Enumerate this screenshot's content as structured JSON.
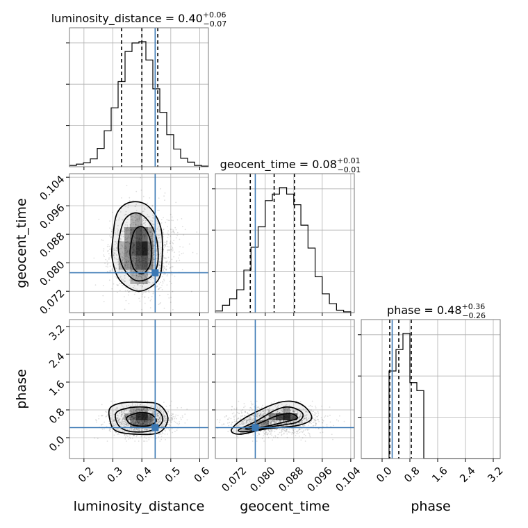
{
  "chart_data": {
    "type": "corner",
    "params": [
      "luminosity_distance",
      "geocent_time",
      "phase"
    ],
    "truths": [
      0.446,
      0.0772,
      0.29
    ],
    "grid": true,
    "ranges": [
      [
        0.15,
        0.63
      ],
      [
        0.066,
        0.105
      ],
      [
        -0.6,
        3.4
      ]
    ],
    "ticks": {
      "luminosity_distance": [
        "0.2",
        "0.3",
        "0.4",
        "0.5",
        "0.6"
      ],
      "geocent_time": [
        "0.072",
        "0.080",
        "0.088",
        "0.096",
        "0.104"
      ],
      "phase": [
        "0.0",
        "0.8",
        "1.6",
        "2.4",
        "3.2"
      ]
    },
    "titles": [
      {
        "text": "luminosity_distance = 0.40",
        "sup": "+0.06",
        "sub": "−0.07"
      },
      {
        "text": "geocent_time = 0.08",
        "sup": "+0.01",
        "sub": "−0.01"
      },
      {
        "text": "phase = 0.48",
        "sup": "+0.36",
        "sub": "−0.26"
      }
    ],
    "quantiles": [
      [
        0.33,
        0.4,
        0.455
      ],
      [
        0.0758,
        0.0825,
        0.0882
      ],
      [
        0.22,
        0.48,
        0.84
      ]
    ],
    "histograms": [
      {
        "param": "luminosity_distance",
        "bins": [
          0.15,
          0.174,
          0.198,
          0.222,
          0.246,
          0.27,
          0.294,
          0.318,
          0.342,
          0.366,
          0.39,
          0.414,
          0.438,
          0.462,
          0.486,
          0.51,
          0.534,
          0.558,
          0.582,
          0.606,
          0.63
        ],
        "counts": [
          2,
          4,
          6,
          12,
          28,
          55,
          90,
          130,
          176,
          189,
          191,
          163,
          119,
          83,
          49,
          27,
          13,
          7,
          2,
          1
        ]
      },
      {
        "param": "geocent_time",
        "bins": [
          0.066,
          0.068,
          0.07,
          0.072,
          0.074,
          0.076,
          0.078,
          0.08,
          0.082,
          0.084,
          0.086,
          0.088,
          0.09,
          0.092,
          0.094,
          0.096,
          0.098,
          0.1,
          0.102,
          0.104
        ],
        "counts": [
          2,
          9,
          17,
          28,
          52,
          80,
          105,
          137,
          145,
          153,
          145,
          132,
          107,
          79,
          44,
          23,
          11,
          3,
          1
        ]
      },
      {
        "param": "phase",
        "bins": [
          -0.6,
          -0.4,
          -0.2,
          0.0,
          0.2,
          0.4,
          0.6,
          0.8,
          1.0,
          1.2,
          1.4,
          1.6,
          1.8,
          2.0,
          2.2,
          2.4,
          2.6,
          2.8,
          3.0,
          3.2,
          3.4
        ],
        "counts": [
          0,
          0,
          0,
          0,
          98,
          122,
          140,
          85,
          76,
          0,
          0,
          0,
          0,
          0,
          0,
          0,
          0,
          0,
          0,
          0
        ]
      }
    ],
    "contours": [
      {
        "x": "luminosity_distance",
        "y": "geocent_time",
        "levels": [
          [
            [
              0.3,
              0.087
            ],
            [
              0.315,
              0.094
            ],
            [
              0.36,
              0.097
            ],
            [
              0.42,
              0.096
            ],
            [
              0.465,
              0.09
            ],
            [
              0.47,
              0.081
            ],
            [
              0.455,
              0.075
            ],
            [
              0.39,
              0.072
            ],
            [
              0.325,
              0.075
            ],
            [
              0.298,
              0.081
            ]
          ],
          [
            [
              0.32,
              0.086
            ],
            [
              0.34,
              0.092
            ],
            [
              0.38,
              0.094
            ],
            [
              0.42,
              0.092
            ],
            [
              0.45,
              0.087
            ],
            [
              0.455,
              0.08
            ],
            [
              0.43,
              0.076
            ],
            [
              0.38,
              0.075
            ],
            [
              0.34,
              0.078
            ],
            [
              0.322,
              0.082
            ]
          ],
          [
            [
              0.36,
              0.084
            ],
            [
              0.375,
              0.089
            ],
            [
              0.405,
              0.09
            ],
            [
              0.43,
              0.086
            ],
            [
              0.43,
              0.08
            ],
            [
              0.405,
              0.077
            ],
            [
              0.375,
              0.078
            ],
            [
              0.362,
              0.081
            ]
          ]
        ],
        "density": [
          [
            0.33,
            0.08,
            0.3
          ],
          [
            0.35,
            0.08,
            0.45
          ],
          [
            0.37,
            0.08,
            0.55
          ],
          [
            0.39,
            0.08,
            0.7
          ],
          [
            0.41,
            0.08,
            0.75
          ],
          [
            0.43,
            0.08,
            0.5
          ],
          [
            0.33,
            0.084,
            0.3
          ],
          [
            0.35,
            0.084,
            0.5
          ],
          [
            0.37,
            0.084,
            0.7
          ],
          [
            0.39,
            0.084,
            0.9
          ],
          [
            0.41,
            0.084,
            1.0
          ],
          [
            0.43,
            0.084,
            0.55
          ],
          [
            0.35,
            0.088,
            0.4
          ],
          [
            0.37,
            0.088,
            0.6
          ],
          [
            0.39,
            0.088,
            0.75
          ],
          [
            0.41,
            0.088,
            0.65
          ],
          [
            0.43,
            0.088,
            0.35
          ],
          [
            0.37,
            0.092,
            0.3
          ],
          [
            0.39,
            0.092,
            0.35
          ],
          [
            0.37,
            0.076,
            0.3
          ],
          [
            0.39,
            0.076,
            0.35
          ],
          [
            0.41,
            0.076,
            0.35
          ]
        ]
      },
      {
        "x": "luminosity_distance",
        "y": "phase",
        "levels": [
          [
            [
              0.29,
              0.85
            ],
            [
              0.33,
              1.0
            ],
            [
              0.4,
              1.02
            ],
            [
              0.46,
              0.95
            ],
            [
              0.49,
              0.55
            ],
            [
              0.46,
              0.15
            ],
            [
              0.38,
              0.1
            ],
            [
              0.31,
              0.2
            ],
            [
              0.29,
              0.5
            ]
          ],
          [
            [
              0.31,
              0.7
            ],
            [
              0.35,
              0.85
            ],
            [
              0.41,
              0.88
            ],
            [
              0.46,
              0.75
            ],
            [
              0.47,
              0.45
            ],
            [
              0.43,
              0.2
            ],
            [
              0.36,
              0.18
            ],
            [
              0.32,
              0.35
            ]
          ],
          [
            [
              0.35,
              0.6
            ],
            [
              0.39,
              0.72
            ],
            [
              0.43,
              0.68
            ],
            [
              0.45,
              0.48
            ],
            [
              0.42,
              0.34
            ],
            [
              0.37,
              0.36
            ],
            [
              0.35,
              0.48
            ]
          ]
        ],
        "density": [
          [
            0.37,
            0.6,
            0.6
          ],
          [
            0.39,
            0.6,
            0.9
          ],
          [
            0.41,
            0.6,
            0.95
          ],
          [
            0.43,
            0.6,
            0.6
          ],
          [
            0.35,
            0.6,
            0.35
          ],
          [
            0.37,
            0.4,
            0.45
          ],
          [
            0.39,
            0.4,
            0.55
          ],
          [
            0.41,
            0.4,
            0.6
          ],
          [
            0.43,
            0.4,
            0.45
          ],
          [
            0.37,
            0.8,
            0.3
          ],
          [
            0.39,
            0.8,
            0.35
          ],
          [
            0.41,
            0.8,
            0.35
          ]
        ]
      },
      {
        "x": "geocent_time",
        "y": "phase",
        "levels": [
          [
            [
              0.0705,
              0.22
            ],
            [
              0.074,
              0.55
            ],
            [
              0.082,
              0.95
            ],
            [
              0.087,
              1.05
            ],
            [
              0.091,
              0.9
            ],
            [
              0.093,
              0.55
            ],
            [
              0.089,
              0.35
            ],
            [
              0.08,
              0.25
            ],
            [
              0.073,
              0.1
            ]
          ],
          [
            [
              0.0725,
              0.22
            ],
            [
              0.077,
              0.45
            ],
            [
              0.083,
              0.8
            ],
            [
              0.087,
              0.88
            ],
            [
              0.0905,
              0.7
            ],
            [
              0.089,
              0.45
            ],
            [
              0.082,
              0.32
            ],
            [
              0.075,
              0.18
            ]
          ],
          [
            [
              0.0745,
              0.25
            ],
            [
              0.078,
              0.4
            ],
            [
              0.083,
              0.62
            ],
            [
              0.087,
              0.7
            ],
            [
              0.089,
              0.56
            ],
            [
              0.085,
              0.44
            ],
            [
              0.079,
              0.3
            ]
          ]
        ],
        "density": [
          [
            0.084,
            0.6,
            0.8
          ],
          [
            0.086,
            0.6,
            0.95
          ],
          [
            0.088,
            0.6,
            0.7
          ],
          [
            0.082,
            0.6,
            0.45
          ],
          [
            0.078,
            0.4,
            0.4
          ],
          [
            0.08,
            0.4,
            0.45
          ],
          [
            0.076,
            0.3,
            0.35
          ],
          [
            0.074,
            0.2,
            0.3
          ],
          [
            0.086,
            0.8,
            0.35
          ]
        ]
      }
    ]
  }
}
